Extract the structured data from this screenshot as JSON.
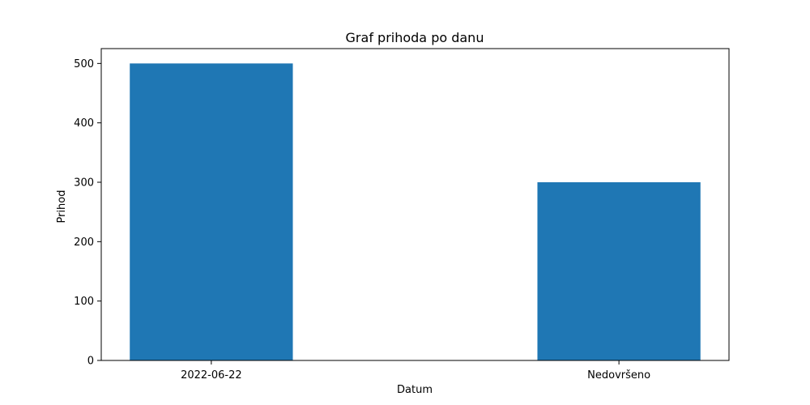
{
  "chart_data": {
    "type": "bar",
    "title": "Graf prihoda po danu",
    "xlabel": "Datum",
    "ylabel": "Prihod",
    "categories": [
      "2022-06-22",
      "Nedovršeno"
    ],
    "values": [
      500,
      300
    ],
    "ylim": [
      0,
      525
    ],
    "yticks": [
      0,
      100,
      200,
      300,
      400,
      500
    ],
    "grid": false,
    "legend": "none",
    "bar_color": "#1f77b4"
  }
}
